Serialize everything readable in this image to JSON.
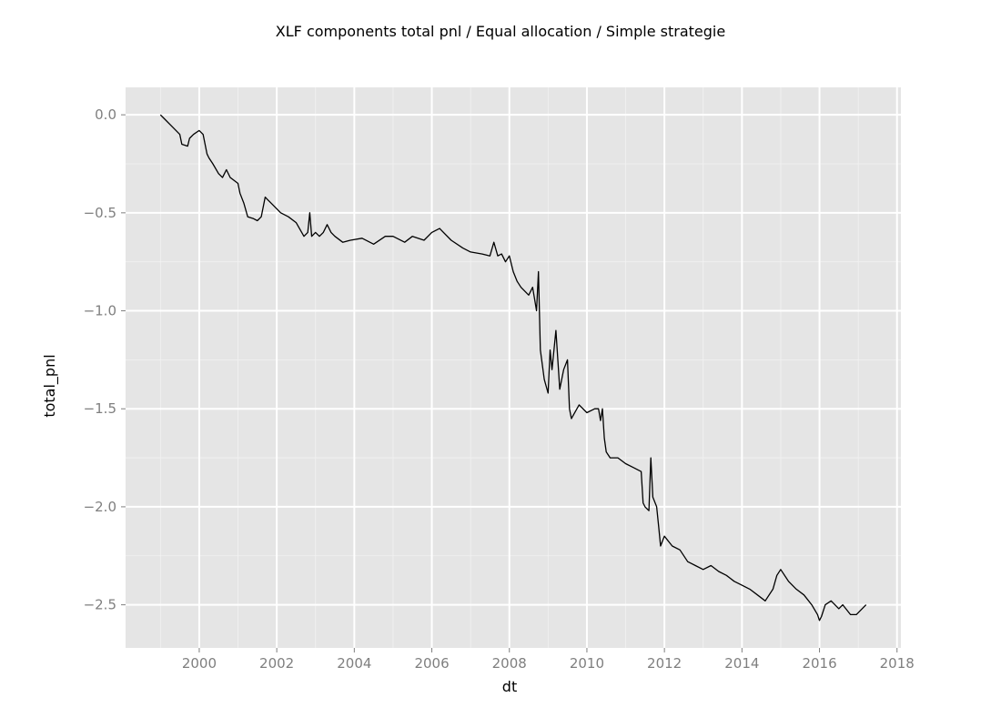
{
  "chart_data": {
    "type": "line",
    "title": "XLF components total pnl / Equal allocation / Simple strategie",
    "xlabel": "dt",
    "ylabel": "total_pnl",
    "x_ticks": [
      "2000",
      "2002",
      "2004",
      "2006",
      "2008",
      "2010",
      "2012",
      "2014",
      "2016",
      "2018"
    ],
    "y_ticks": [
      "0.0",
      "−0.5",
      "−1.0",
      "−1.5",
      "−2.0",
      "−2.5"
    ],
    "xlim": [
      1998.1,
      2018.1
    ],
    "ylim": [
      -2.72,
      0.14
    ],
    "grid": true,
    "series": [
      {
        "x": [
          1999.0,
          1999.1,
          1999.3,
          1999.5,
          1999.55,
          1999.7,
          1999.75,
          1999.85,
          2000.0,
          2000.1,
          2000.2,
          2000.25,
          2000.35,
          2000.5,
          2000.6,
          2000.7,
          2000.8,
          2001.0,
          2001.05,
          2001.15,
          2001.25,
          2001.4,
          2001.5,
          2001.6,
          2001.7,
          2001.75,
          2001.9,
          2002.1,
          2002.3,
          2002.5,
          2002.7,
          2002.8,
          2002.85,
          2002.9,
          2003.0,
          2003.1,
          2003.2,
          2003.3,
          2003.4,
          2003.5,
          2003.7,
          2003.9,
          2004.2,
          2004.5,
          2004.8,
          2005.0,
          2005.3,
          2005.5,
          2005.8,
          2006.0,
          2006.2,
          2006.5,
          2006.8,
          2007.0,
          2007.3,
          2007.5,
          2007.6,
          2007.7,
          2007.8,
          2007.9,
          2008.0,
          2008.1,
          2008.2,
          2008.3,
          2008.5,
          2008.6,
          2008.7,
          2008.75,
          2008.8,
          2008.9,
          2009.0,
          2009.05,
          2009.1,
          2009.2,
          2009.25,
          2009.3,
          2009.4,
          2009.5,
          2009.55,
          2009.6,
          2009.8,
          2010.0,
          2010.2,
          2010.3,
          2010.35,
          2010.4,
          2010.45,
          2010.5,
          2010.6,
          2010.8,
          2011.0,
          2011.2,
          2011.4,
          2011.45,
          2011.5,
          2011.6,
          2011.65,
          2011.7,
          2011.8,
          2011.85,
          2011.9,
          2012.0,
          2012.2,
          2012.4,
          2012.6,
          2012.8,
          2013.0,
          2013.2,
          2013.4,
          2013.6,
          2013.8,
          2014.0,
          2014.2,
          2014.4,
          2014.6,
          2014.8,
          2014.9,
          2015.0,
          2015.2,
          2015.4,
          2015.6,
          2015.8,
          2015.95,
          2016.0,
          2016.05,
          2016.15,
          2016.3,
          2016.5,
          2016.6,
          2016.8,
          2016.95,
          2017.1,
          2017.2
        ],
        "y": [
          0.0,
          -0.02,
          -0.06,
          -0.1,
          -0.15,
          -0.16,
          -0.12,
          -0.1,
          -0.08,
          -0.1,
          -0.2,
          -0.22,
          -0.25,
          -0.3,
          -0.32,
          -0.28,
          -0.32,
          -0.35,
          -0.4,
          -0.45,
          -0.52,
          -0.53,
          -0.54,
          -0.52,
          -0.42,
          -0.43,
          -0.46,
          -0.5,
          -0.52,
          -0.55,
          -0.62,
          -0.6,
          -0.5,
          -0.62,
          -0.6,
          -0.62,
          -0.6,
          -0.56,
          -0.6,
          -0.62,
          -0.65,
          -0.64,
          -0.63,
          -0.66,
          -0.62,
          -0.62,
          -0.65,
          -0.62,
          -0.64,
          -0.6,
          -0.58,
          -0.64,
          -0.68,
          -0.7,
          -0.71,
          -0.72,
          -0.65,
          -0.72,
          -0.71,
          -0.75,
          -0.72,
          -0.8,
          -0.85,
          -0.88,
          -0.92,
          -0.88,
          -1.0,
          -0.8,
          -1.2,
          -1.35,
          -1.42,
          -1.2,
          -1.3,
          -1.1,
          -1.25,
          -1.4,
          -1.3,
          -1.25,
          -1.5,
          -1.55,
          -1.48,
          -1.52,
          -1.5,
          -1.5,
          -1.56,
          -1.5,
          -1.65,
          -1.72,
          -1.75,
          -1.75,
          -1.78,
          -1.8,
          -1.82,
          -1.98,
          -2.0,
          -2.02,
          -1.75,
          -1.95,
          -2.0,
          -2.1,
          -2.2,
          -2.15,
          -2.2,
          -2.22,
          -2.28,
          -2.3,
          -2.32,
          -2.3,
          -2.33,
          -2.35,
          -2.38,
          -2.4,
          -2.42,
          -2.45,
          -2.48,
          -2.42,
          -2.35,
          -2.32,
          -2.38,
          -2.42,
          -2.45,
          -2.5,
          -2.55,
          -2.58,
          -2.56,
          -2.5,
          -2.48,
          -2.52,
          -2.5,
          -2.55,
          -2.55,
          -2.52,
          -2.5
        ]
      }
    ]
  }
}
